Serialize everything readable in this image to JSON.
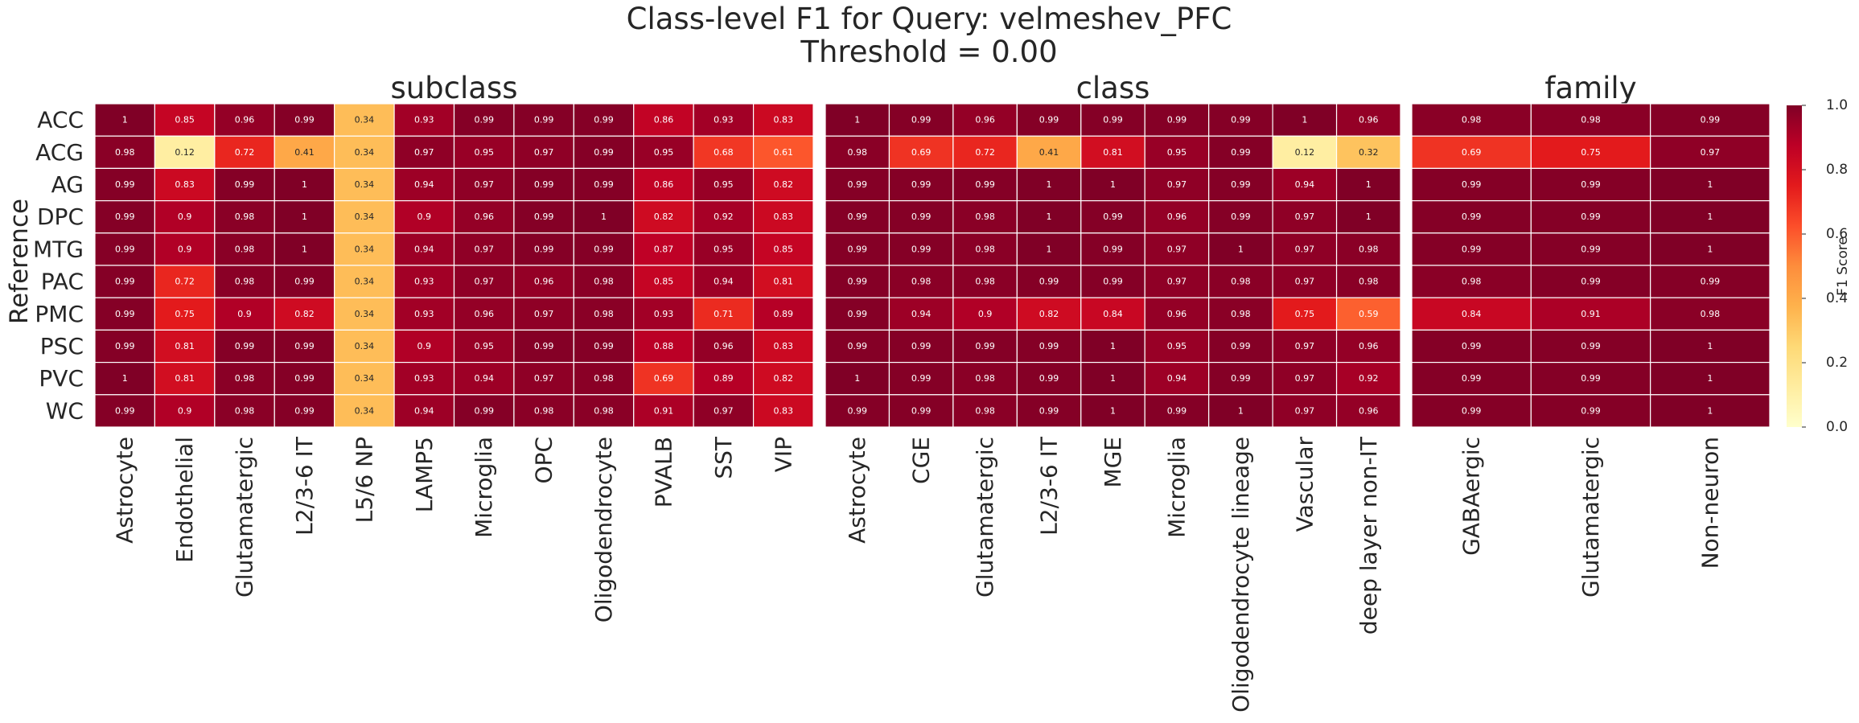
{
  "figure": {
    "title_line1": "Class-level F1 for Query: velmeshev_PFC",
    "title_line2": "Threshold = 0.00",
    "ylabel": "Reference"
  },
  "chart_data": {
    "type": "heatmap",
    "rows": [
      "ACC",
      "ACG",
      "AG",
      "DPC",
      "MTG",
      "PAC",
      "PMC",
      "PSC",
      "PVC",
      "WC"
    ],
    "panels": [
      {
        "title": "subclass",
        "columns": [
          "Astrocyte",
          "Endothelial",
          "Glutamatergic",
          "L2/3-6 IT",
          "L5/6 NP",
          "LAMP5",
          "Microglia",
          "OPC",
          "Oligodendrocyte",
          "PVALB",
          "SST",
          "VIP"
        ],
        "values": [
          [
            1,
            0.85,
            0.96,
            0.99,
            0.34,
            0.93,
            0.99,
            0.99,
            0.99,
            0.86,
            0.93,
            0.83
          ],
          [
            0.98,
            0.12,
            0.72,
            0.41,
            0.34,
            0.97,
            0.95,
            0.97,
            0.99,
            0.95,
            0.68,
            0.61
          ],
          [
            0.99,
            0.83,
            0.99,
            1,
            0.34,
            0.94,
            0.97,
            0.99,
            0.99,
            0.86,
            0.95,
            0.82
          ],
          [
            0.99,
            0.9,
            0.98,
            1,
            0.34,
            0.9,
            0.96,
            0.99,
            1,
            0.82,
            0.92,
            0.83
          ],
          [
            0.99,
            0.9,
            0.98,
            1,
            0.34,
            0.94,
            0.97,
            0.99,
            0.99,
            0.87,
            0.95,
            0.85
          ],
          [
            0.99,
            0.72,
            0.98,
            0.99,
            0.34,
            0.93,
            0.97,
            0.96,
            0.98,
            0.85,
            0.94,
            0.81
          ],
          [
            0.99,
            0.75,
            0.9,
            0.82,
            0.34,
            0.93,
            0.96,
            0.97,
            0.98,
            0.93,
            0.71,
            0.89
          ],
          [
            0.99,
            0.81,
            0.99,
            0.99,
            0.34,
            0.9,
            0.95,
            0.99,
            0.99,
            0.88,
            0.96,
            0.83
          ],
          [
            1,
            0.81,
            0.98,
            0.99,
            0.34,
            0.93,
            0.94,
            0.97,
            0.98,
            0.69,
            0.89,
            0.82
          ],
          [
            0.99,
            0.9,
            0.98,
            0.99,
            0.34,
            0.94,
            0.99,
            0.98,
            0.98,
            0.91,
            0.97,
            0.83
          ]
        ]
      },
      {
        "title": "class",
        "columns": [
          "Astrocyte",
          "CGE",
          "Glutamatergic",
          "L2/3-6 IT",
          "MGE",
          "Microglia",
          "Oligodendrocyte lineage",
          "Vascular",
          "deep layer non-IT"
        ],
        "values": [
          [
            1,
            0.99,
            0.96,
            0.99,
            0.99,
            0.99,
            0.99,
            1,
            0.96
          ],
          [
            0.98,
            0.69,
            0.72,
            0.41,
            0.81,
            0.95,
            0.99,
            0.12,
            0.32
          ],
          [
            0.99,
            0.99,
            0.99,
            1,
            1,
            0.97,
            0.99,
            0.94,
            1
          ],
          [
            0.99,
            0.99,
            0.98,
            1,
            0.99,
            0.96,
            0.99,
            0.97,
            1
          ],
          [
            0.99,
            0.99,
            0.98,
            1,
            0.99,
            0.97,
            1,
            0.97,
            0.98
          ],
          [
            0.99,
            0.98,
            0.98,
            0.99,
            0.99,
            0.97,
            0.98,
            0.97,
            0.98
          ],
          [
            0.99,
            0.94,
            0.9,
            0.82,
            0.84,
            0.96,
            0.98,
            0.75,
            0.59
          ],
          [
            0.99,
            0.99,
            0.99,
            0.99,
            1,
            0.95,
            0.99,
            0.97,
            0.96
          ],
          [
            1,
            0.99,
            0.98,
            0.99,
            1,
            0.94,
            0.99,
            0.97,
            0.92
          ],
          [
            0.99,
            0.99,
            0.98,
            0.99,
            1,
            0.99,
            1,
            0.97,
            0.96
          ]
        ]
      },
      {
        "title": "family",
        "columns": [
          "GABAergic",
          "Glutamatergic",
          "Non-neuron"
        ],
        "values": [
          [
            0.98,
            0.98,
            0.99
          ],
          [
            0.69,
            0.75,
            0.97
          ],
          [
            0.99,
            0.99,
            1
          ],
          [
            0.99,
            0.99,
            1
          ],
          [
            0.99,
            0.99,
            1
          ],
          [
            0.98,
            0.99,
            0.99
          ],
          [
            0.84,
            0.91,
            0.98
          ],
          [
            0.99,
            0.99,
            1
          ],
          [
            0.99,
            0.99,
            1
          ],
          [
            0.99,
            0.99,
            1
          ]
        ]
      }
    ],
    "colorbar": {
      "label": "F1 Score",
      "range": [
        0,
        1
      ],
      "ticks": [
        "0.0",
        "0.2",
        "0.4",
        "0.6",
        "0.8",
        "1.0"
      ],
      "colormap": [
        "#ffffcc",
        "#ffeda0",
        "#fed976",
        "#feb24c",
        "#fd8d3c",
        "#fc4e2a",
        "#e31a1c",
        "#bd0026",
        "#800026"
      ]
    },
    "grid": false
  }
}
